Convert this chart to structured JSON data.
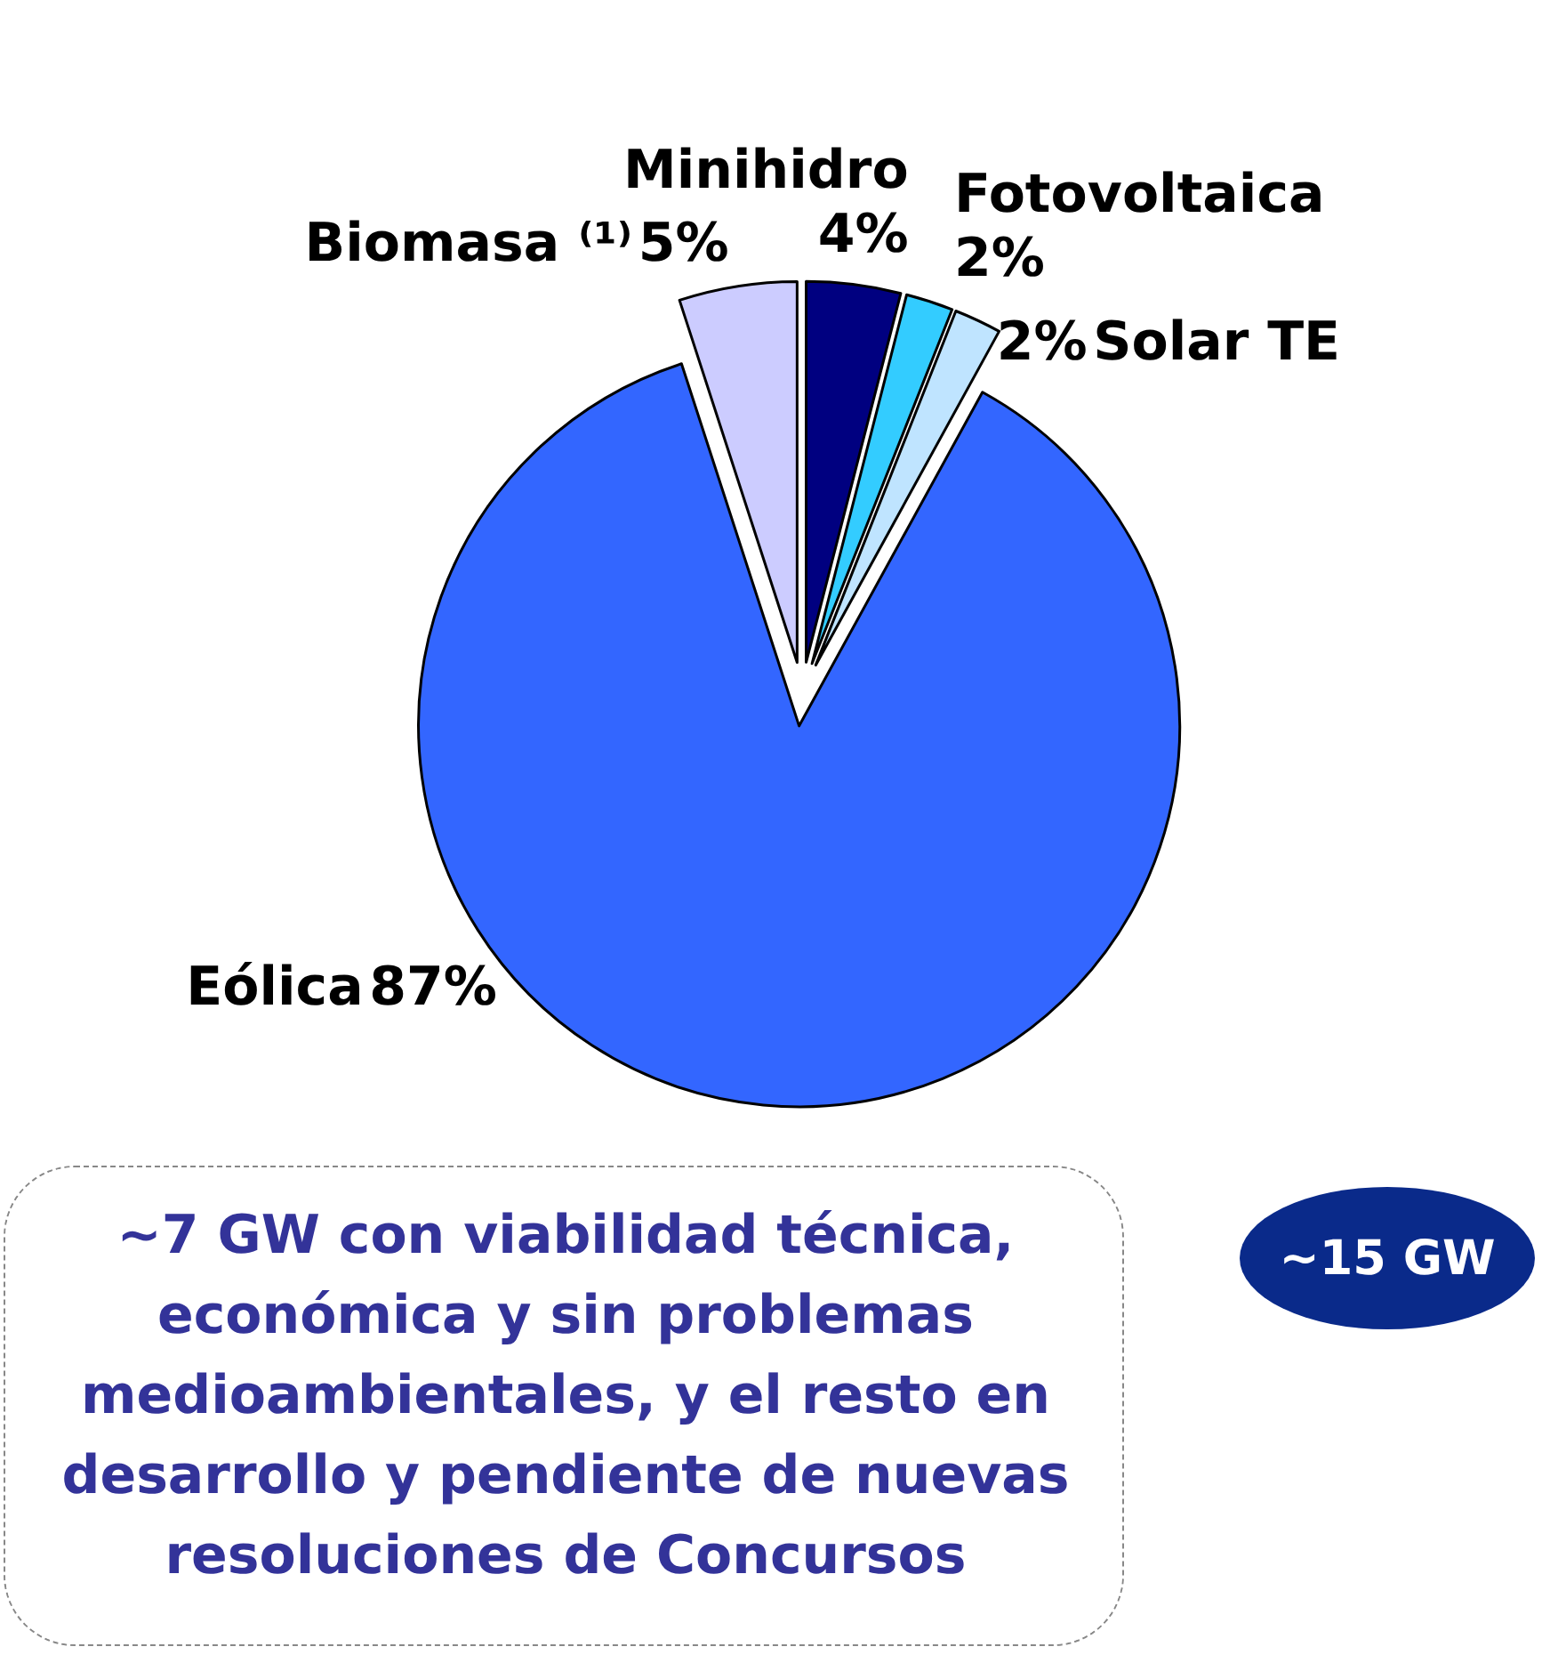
{
  "chart_data": {
    "type": "pie",
    "categories": [
      "Minihidro",
      "Fotovoltaica",
      "Solar TE",
      "Eólica",
      "Biomasa ⁽¹⁾"
    ],
    "values": [
      4,
      2,
      2,
      87,
      5
    ],
    "value_labels": [
      "4%",
      "2%",
      "2%",
      "87%",
      "5%"
    ],
    "colors": [
      "#000080",
      "#33ccff",
      "#bfe4ff",
      "#3366ff",
      "#ccccff"
    ],
    "annotations": [
      "~7 GW con viabilidad técnica, económica y sin problemas medioambientales, y el resto en desarrollo y pendiente de nuevas resoluciones de Concursos",
      "~15 GW"
    ],
    "legend": false
  }
}
